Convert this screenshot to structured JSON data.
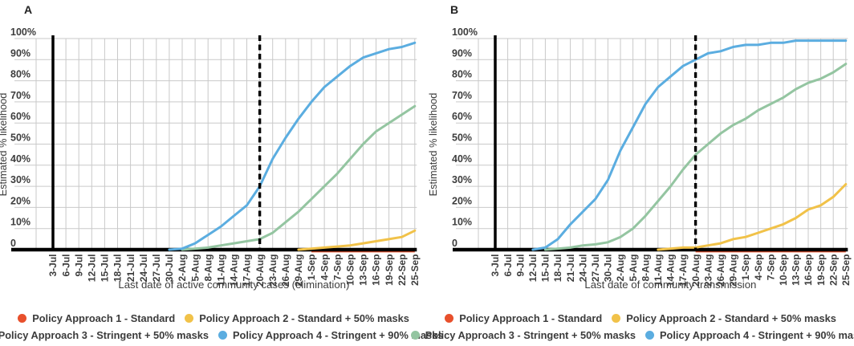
{
  "colors": {
    "policy1_red": "#e8502c",
    "policy2_yellow": "#f1c249",
    "policy3_green": "#94c5a1",
    "policy4_blue": "#5badе0",
    "grid": "#c9c9c9",
    "axis": "#000000",
    "text": "#3d3d3d"
  },
  "legend": {
    "rows": [
      [
        {
          "label": "Policy Approach 1 - Standard",
          "color": "#e8502c"
        },
        {
          "label": "Policy Approach 2 - Standard + 50% masks",
          "color": "#f1c249"
        }
      ],
      [
        {
          "label": "Policy Approach 3 - Stringent + 50% masks",
          "color": "#94c5a1"
        },
        {
          "label": "Policy Approach 4 - Stringent + 90% masks",
          "color": "#5bade0"
        }
      ]
    ]
  },
  "chart_data": [
    {
      "type": "line",
      "panel_label": "A",
      "ylabel": "Estimated % likelihood",
      "xlabel": "Last date of active community cases (elimination)",
      "ylim": [
        0,
        100
      ],
      "grid": true,
      "y_tick_labels": [
        "100%",
        "90%",
        "80%",
        "70%",
        "60%",
        "50%",
        "40%",
        "30%",
        "20%",
        "10%",
        "0"
      ],
      "x_ticks": [
        "3-Jul",
        "6-Jul",
        "9-Jul",
        "12-Jul",
        "15-Jul",
        "18-Jul",
        "21-Jul",
        "24-Jul",
        "27-Jul",
        "30-Jul",
        "2-Aug",
        "5-Aug",
        "8-Aug",
        "11-Aug",
        "14-Aug",
        "17-Aug",
        "20-Aug",
        "23-Aug",
        "26-Aug",
        "29-Aug",
        "1-Sep",
        "4-Sep",
        "7-Sep",
        "10-Sep",
        "13-Sep",
        "16-Sep",
        "19-Sep",
        "22-Sep",
        "25-Sep"
      ],
      "vline_solid": "3-Jul",
      "vline_dashed": "20-Aug",
      "series": [
        {
          "name": "Policy Approach 1 - Standard",
          "color": "#e8502c",
          "values": [
            0,
            0,
            0,
            0,
            0,
            0,
            0,
            0,
            0,
            0,
            0,
            0,
            0,
            0,
            0,
            0,
            0,
            0,
            0,
            0,
            0,
            0,
            0,
            0,
            0,
            0,
            0,
            0,
            0
          ]
        },
        {
          "name": "Policy Approach 2 - Standard + 50% masks",
          "color": "#f1c249",
          "values": [
            0,
            0,
            0,
            0,
            0,
            0,
            0,
            0,
            0,
            0,
            0,
            0,
            0,
            0,
            0,
            0,
            0,
            0,
            0,
            0,
            0.5,
            1,
            1.5,
            2,
            3,
            4,
            5,
            6,
            9
          ]
        },
        {
          "name": "Policy Approach 3 - Stringent + 50% masks",
          "color": "#94c5a1",
          "values": [
            0,
            0,
            0,
            0,
            0,
            0,
            0,
            0,
            0,
            0,
            0,
            0.5,
            1,
            2,
            3,
            4,
            5,
            8,
            13,
            18,
            24,
            30,
            36,
            43,
            50,
            56,
            60,
            64,
            68
          ]
        },
        {
          "name": "Policy Approach 4 - Stringent + 90% masks",
          "color": "#5bade0",
          "values": [
            0,
            0,
            0,
            0,
            0,
            0,
            0,
            0,
            0,
            0,
            0.5,
            3,
            7,
            11,
            16,
            21,
            30,
            43,
            53,
            62,
            70,
            77,
            82,
            87,
            91,
            93,
            95,
            96,
            98
          ]
        }
      ]
    },
    {
      "type": "line",
      "panel_label": "B",
      "ylabel": "Estimated % likelihood",
      "xlabel": "Last date of community transmission",
      "ylim": [
        0,
        100
      ],
      "grid": true,
      "y_tick_labels": [
        "100%",
        "90%",
        "80%",
        "70%",
        "60%",
        "50%",
        "40%",
        "30%",
        "20%",
        "10%",
        "0"
      ],
      "x_ticks": [
        "3-Jul",
        "6-Jul",
        "9-Jul",
        "12-Jul",
        "15-Jul",
        "18-Jul",
        "21-Jul",
        "24-Jul",
        "27-Jul",
        "30-Jul",
        "2-Aug",
        "5-Aug",
        "8-Aug",
        "11-Aug",
        "14-Aug",
        "17-Aug",
        "20-Aug",
        "23-Aug",
        "26-Aug",
        "29-Aug",
        "1-Sep",
        "4-Sep",
        "7-Sep",
        "10-Sep",
        "13-Sep",
        "16-Sep",
        "19-Sep",
        "22-Sep",
        "25-Sep"
      ],
      "vline_solid": "3-Jul",
      "vline_dashed": "20-Aug",
      "series": [
        {
          "name": "Policy Approach 1 - Standard",
          "color": "#e8502c",
          "values": [
            0,
            0,
            0,
            0,
            0,
            0,
            0,
            0,
            0,
            0,
            0,
            0,
            0,
            0,
            0,
            0,
            0,
            0,
            0,
            0,
            0,
            0,
            0,
            0,
            0,
            0,
            0,
            0,
            0
          ]
        },
        {
          "name": "Policy Approach 2 - Standard + 50% masks",
          "color": "#f1c249",
          "values": [
            0,
            0,
            0,
            0,
            0,
            0,
            0,
            0,
            0,
            0,
            0,
            0,
            0,
            0,
            0.5,
            1,
            1,
            2,
            3,
            5,
            6,
            8,
            10,
            12,
            15,
            19,
            21,
            25,
            31
          ]
        },
        {
          "name": "Policy Approach 3 - Stringent + 50% masks",
          "color": "#94c5a1",
          "values": [
            0,
            0,
            0,
            0,
            0,
            0.5,
            1,
            2,
            2.5,
            3.5,
            6,
            10,
            16,
            23,
            30,
            38,
            45,
            50,
            55,
            59,
            62,
            66,
            69,
            72,
            76,
            79,
            81,
            84,
            88
          ]
        },
        {
          "name": "Policy Approach 4 - Stringent + 90% masks",
          "color": "#5bade0",
          "values": [
            0,
            0,
            0,
            0,
            1,
            5,
            12,
            18,
            24,
            33,
            47,
            58,
            69,
            77,
            82,
            87,
            90,
            93,
            94,
            96,
            97,
            97,
            98,
            98,
            99,
            99,
            99,
            99,
            99
          ]
        }
      ]
    }
  ]
}
